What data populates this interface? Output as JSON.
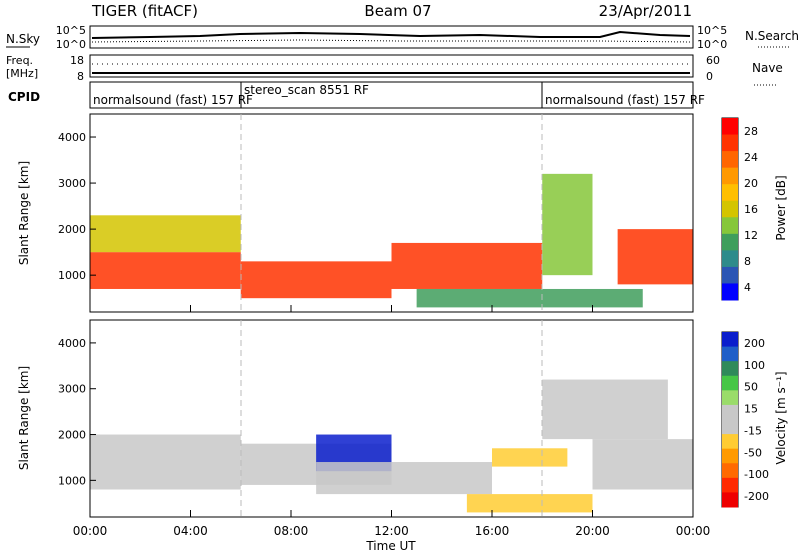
{
  "header": {
    "title": "TIGER (fitACF)",
    "beam": "Beam 07",
    "date": "23/Apr/2011"
  },
  "aux_panels": {
    "nsky": {
      "label": "N.Sky",
      "left_ticks": [
        "10^5",
        "10^0"
      ],
      "right_ticks": [
        "10^5",
        "10^0"
      ],
      "right_label": "N.Search"
    },
    "freq": {
      "label_top": "Freq.",
      "label_bottom": "[MHz]",
      "left_ticks": [
        "18",
        "8"
      ],
      "right_ticks": [
        "60",
        "0"
      ],
      "right_label": "Nave"
    },
    "cpid": {
      "label": "CPID",
      "segments": [
        {
          "label": "normalsound (fast) 157 RF",
          "start_h": 0,
          "end_h": 6
        },
        {
          "label": "stereo_scan 8551 RF",
          "start_h": 6,
          "end_h": 18
        },
        {
          "label": "normalsound (fast) 157 RF",
          "start_h": 18,
          "end_h": 24
        }
      ]
    }
  },
  "chart_data": [
    {
      "type": "heatmap",
      "name": "power",
      "ylabel": "Slant Range [km]",
      "xlabel": "",
      "ylim": [
        200,
        4500
      ],
      "xlim": [
        0,
        24
      ],
      "yticks": [
        "1000",
        "2000",
        "3000",
        "4000"
      ],
      "colorbar": {
        "label": "Power [dB]",
        "ticks": [
          "28",
          "24",
          "20",
          "16",
          "12",
          "8",
          "4"
        ],
        "colors": [
          "#ff0000",
          "#ff3300",
          "#ff6600",
          "#ff9900",
          "#ffbf00",
          "#d4c400",
          "#86c73a",
          "#3f9e5c",
          "#2e8b8b",
          "#2b55b4",
          "#0000ff"
        ]
      },
      "echo_regions": [
        {
          "hours": [
            0,
            6
          ],
          "range_km": [
            700,
            1500
          ],
          "dB": 26
        },
        {
          "hours": [
            0,
            6
          ],
          "range_km": [
            1500,
            2300
          ],
          "dB": 14
        },
        {
          "hours": [
            6,
            12
          ],
          "range_km": [
            500,
            1300
          ],
          "dB": 26
        },
        {
          "hours": [
            12,
            18
          ],
          "range_km": [
            700,
            1700
          ],
          "dB": 24
        },
        {
          "hours": [
            18,
            20
          ],
          "range_km": [
            1000,
            3200
          ],
          "dB": 10
        },
        {
          "hours": [
            21,
            24
          ],
          "range_km": [
            800,
            2000
          ],
          "dB": 26
        },
        {
          "hours": [
            13,
            22
          ],
          "range_km": [
            300,
            700
          ],
          "dB": 8
        }
      ]
    },
    {
      "type": "heatmap",
      "name": "velocity",
      "ylabel": "Slant Range [km]",
      "xlabel": "Time UT",
      "ylim": [
        200,
        4500
      ],
      "xlim": [
        0,
        24
      ],
      "yticks": [
        "1000",
        "2000",
        "3000",
        "4000"
      ],
      "xticks": [
        "00:00",
        "04:00",
        "08:00",
        "12:00",
        "16:00",
        "20:00",
        "00:00"
      ],
      "colorbar": {
        "label": "Velocity [m s⁻¹]",
        "ticks": [
          "200",
          "100",
          "50",
          "15",
          "-15",
          "-50",
          "-100",
          "-200"
        ],
        "colors": [
          "#0a1ecc",
          "#1f5fc8",
          "#2f8a5a",
          "#46c646",
          "#9adc6a",
          "#c8c8c8",
          "#c8c8c8",
          "#ffcc33",
          "#ff9a00",
          "#ff6a00",
          "#ff2a00",
          "#ee0000"
        ]
      },
      "echo_regions": [
        {
          "hours": [
            0,
            6
          ],
          "range_km": [
            800,
            2000
          ],
          "m_per_s": 0
        },
        {
          "hours": [
            6,
            12
          ],
          "range_km": [
            900,
            1800
          ],
          "m_per_s": 0
        },
        {
          "hours": [
            9,
            12
          ],
          "range_km": [
            1200,
            2000
          ],
          "m_per_s": 200
        },
        {
          "hours": [
            9,
            16
          ],
          "range_km": [
            700,
            1400
          ],
          "m_per_s": 30
        },
        {
          "hours": [
            16,
            19
          ],
          "range_km": [
            1300,
            1700
          ],
          "m_per_s": -60
        },
        {
          "hours": [
            15,
            20
          ],
          "range_km": [
            300,
            700
          ],
          "m_per_s": -50
        },
        {
          "hours": [
            20,
            24
          ],
          "range_km": [
            800,
            1900
          ],
          "m_per_s": 0
        },
        {
          "hours": [
            18,
            23
          ],
          "range_km": [
            1900,
            3200
          ],
          "m_per_s": 30
        }
      ]
    }
  ]
}
